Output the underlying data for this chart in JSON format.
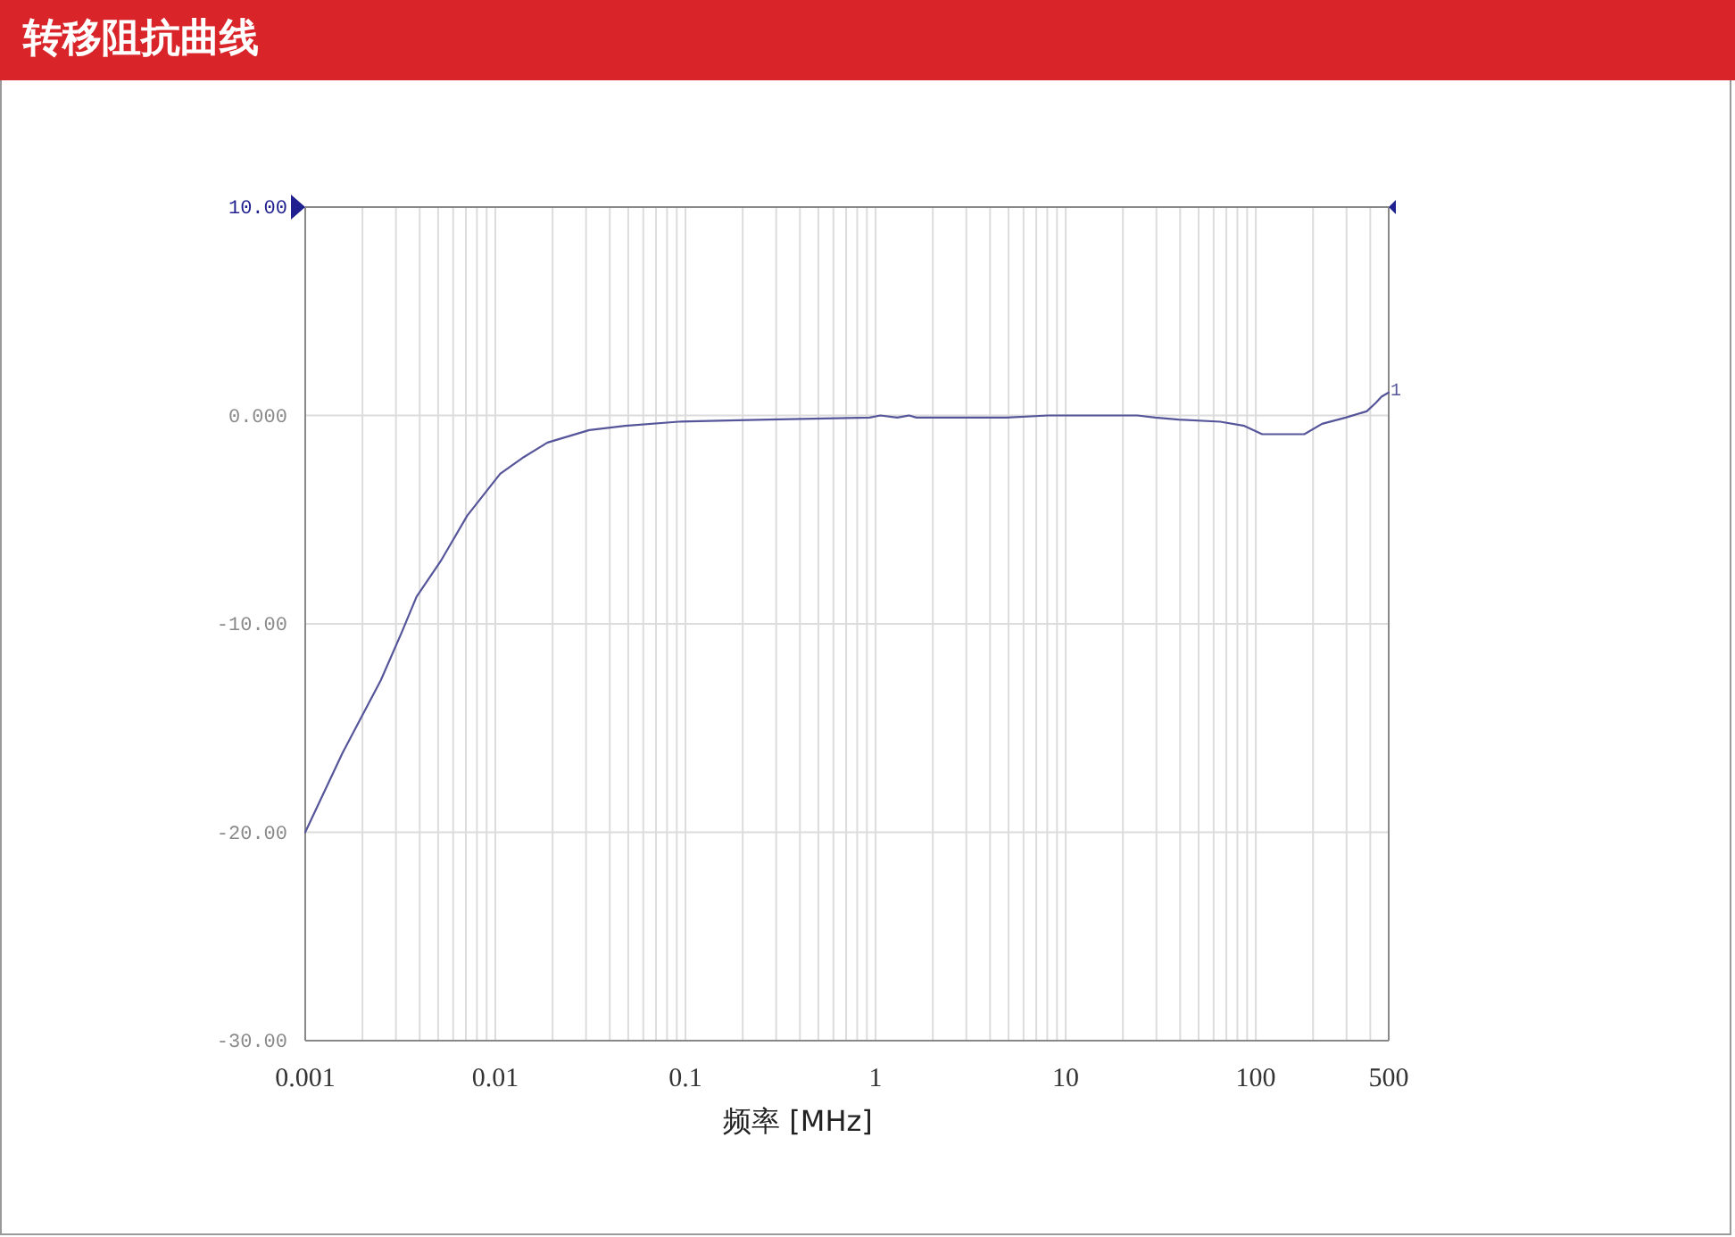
{
  "chart_data": {
    "type": "line",
    "title": "转移阻抗曲线",
    "xlabel": "频率 [MHz]",
    "x": [
      0.001,
      0.00157,
      0.0025,
      0.00322,
      0.00385,
      0.00515,
      0.00712,
      0.0106,
      0.0141,
      0.0188,
      0.0312,
      0.0481,
      0.092,
      0.27,
      0.93,
      1.06,
      1.3,
      1.5,
      1.64,
      2.37,
      4.87,
      8.1,
      23.8,
      29.6,
      39.4,
      65,
      87,
      108,
      135,
      180,
      223,
      297,
      383,
      427,
      458,
      500
    ],
    "values": [
      -20,
      -16.2,
      -12.7,
      -10.4,
      -8.7,
      -7.0,
      -4.8,
      -2.8,
      -2.0,
      -1.3,
      -0.7,
      -0.5,
      -0.3,
      -0.2,
      -0.1,
      0,
      -0.1,
      0,
      -0.1,
      -0.1,
      -0.1,
      0,
      0,
      -0.1,
      -0.2,
      -0.3,
      -0.5,
      -0.9,
      -0.9,
      -0.9,
      -0.4,
      -0.1,
      0.2,
      0.6,
      0.9,
      1.1
    ],
    "color": "#55559a",
    "xlim": [
      0.001,
      500
    ],
    "xticks": [
      0.001,
      0.01,
      0.1,
      1,
      10,
      100,
      500
    ],
    "ylim": [
      -30,
      10
    ],
    "yticks": [
      {
        "value": -30,
        "label": "-30.00"
      },
      {
        "value": -20,
        "label": "-20.00"
      },
      {
        "value": -10,
        "label": "-10.00"
      },
      {
        "value": 0,
        "label": "0.000"
      },
      {
        "value": 10,
        "label": "10.00"
      }
    ],
    "log": "x",
    "grid": true,
    "annotations": [
      {
        "text": "1",
        "x": 500,
        "y": 1.1
      }
    ]
  }
}
